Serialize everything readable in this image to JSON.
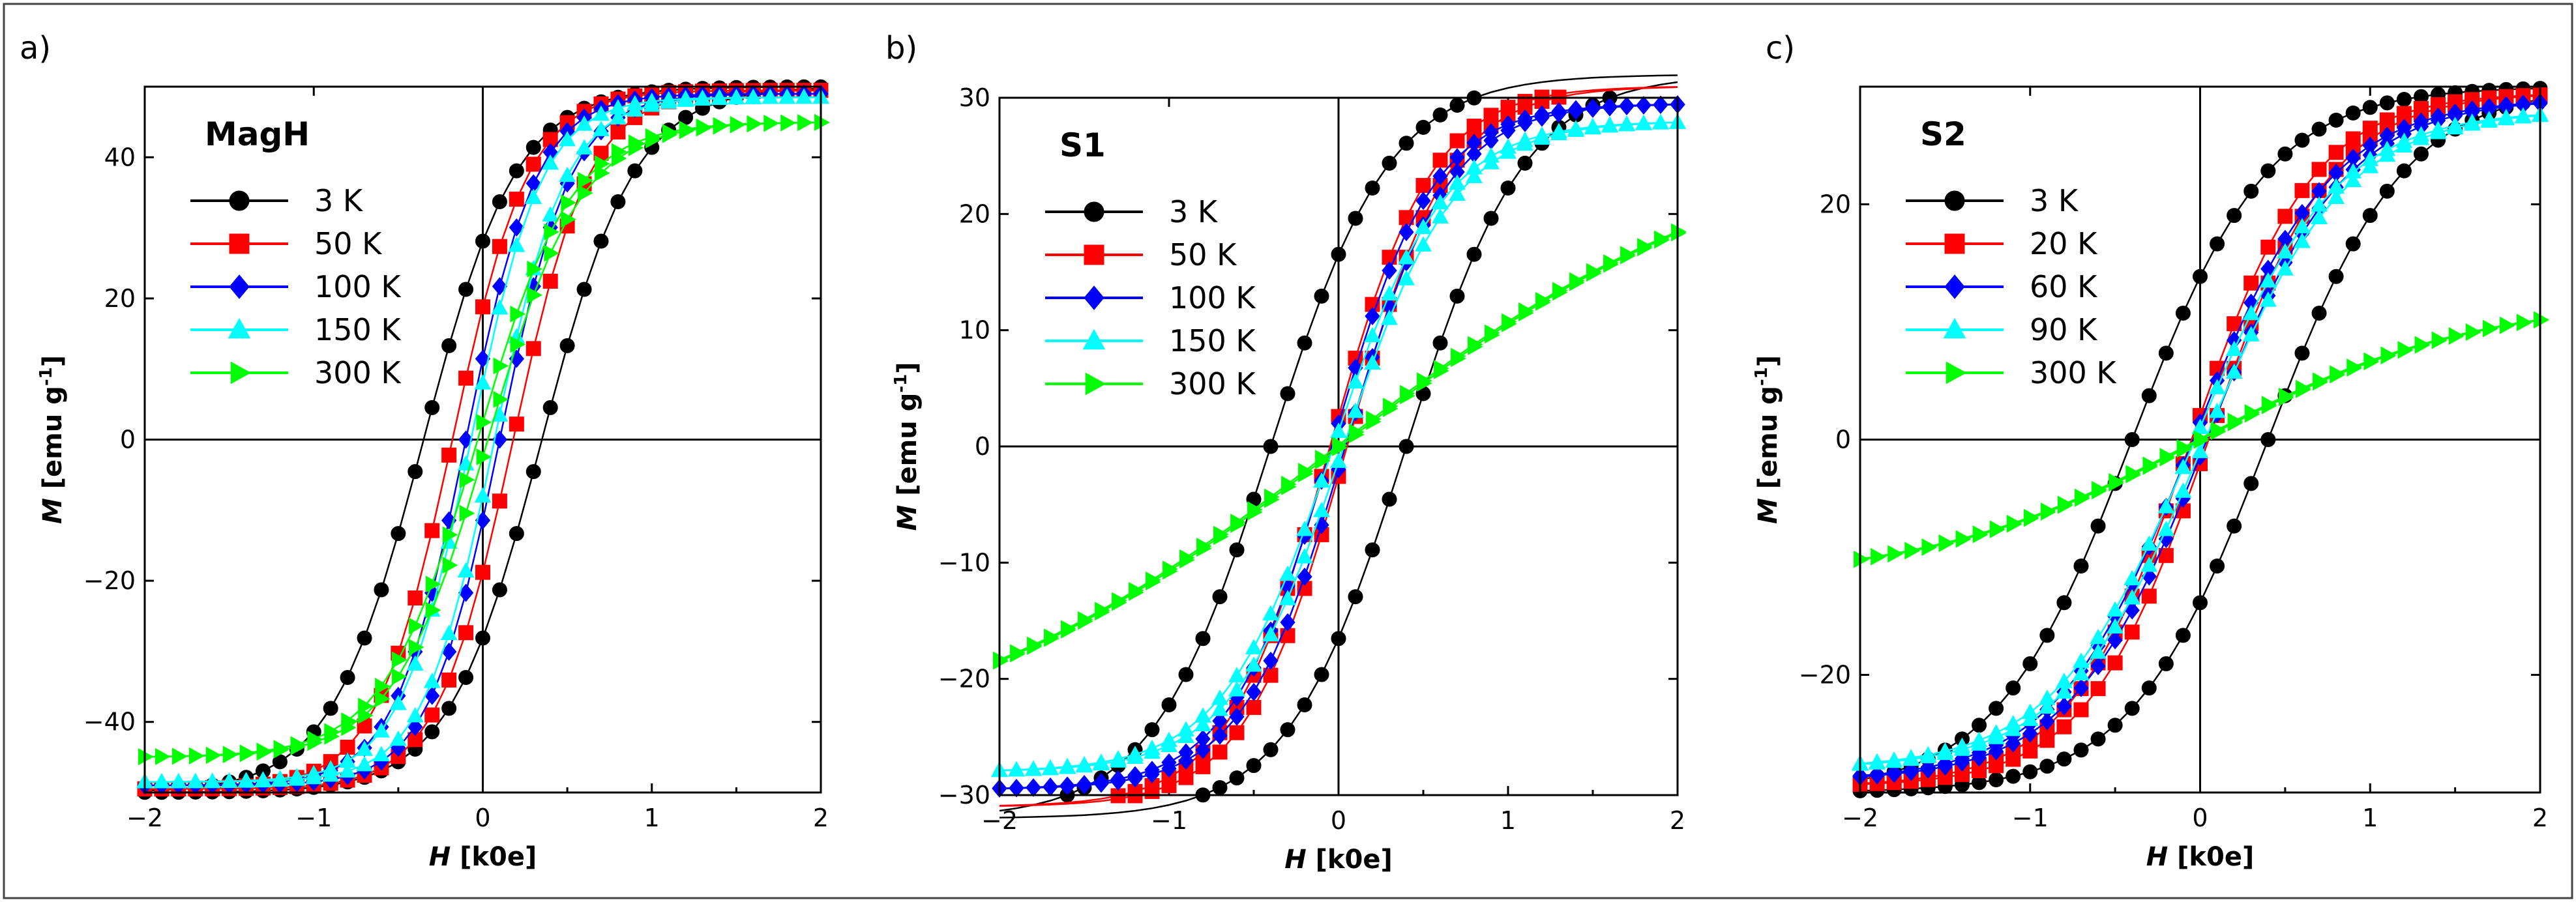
{
  "figure": {
    "description_labels": [
      "a)",
      "b)",
      "c)"
    ]
  },
  "chart_data": [
    {
      "type": "scatter",
      "panel_label": "a)",
      "title": "MagH",
      "xlabel_symbol": "H",
      "xlabel_unit": "[k0e]",
      "ylabel_symbol": "M",
      "ylabel_unit": "[emu g",
      "ylabel_sup": "-1",
      "ylabel_close": "]",
      "xlim": [
        -2,
        2
      ],
      "ylim": [
        -50,
        50
      ],
      "xticks": [
        -2,
        -1,
        0,
        1,
        2
      ],
      "yticks": [
        -40,
        -20,
        0,
        20,
        40
      ],
      "series": [
        {
          "name": "3 K",
          "color": "#000000",
          "marker": "circle",
          "Ms": 50.0,
          "Hc": 0.35,
          "w": 0.55,
          "n": 40
        },
        {
          "name": "50 K",
          "color": "#ff0000",
          "marker": "square",
          "Ms": 49.5,
          "Hc": 0.18,
          "w": 0.45,
          "n": 40
        },
        {
          "name": "100 K",
          "color": "#0000ff",
          "marker": "diamond",
          "Ms": 49.0,
          "Hc": 0.1,
          "w": 0.42,
          "n": 40
        },
        {
          "name": "150 K",
          "color": "#00ffff",
          "marker": "triangle-up",
          "Ms": 48.5,
          "Hc": 0.07,
          "w": 0.42,
          "n": 40
        },
        {
          "name": "300 K",
          "color": "#00ff00",
          "marker": "triangle-right",
          "Ms": 45.0,
          "Hc": 0.03,
          "w": 0.55,
          "n": 40
        }
      ]
    },
    {
      "type": "scatter",
      "panel_label": "b)",
      "title": "S1",
      "xlabel_symbol": "H",
      "xlabel_unit": "[k0e]",
      "ylabel_symbol": "M",
      "ylabel_unit": "[emu g",
      "ylabel_sup": "-1",
      "ylabel_close": "]",
      "xlim": [
        -2,
        2
      ],
      "ylim": [
        -30,
        30
      ],
      "xticks": [
        -2,
        -1,
        0,
        1,
        2
      ],
      "yticks": [
        -30,
        -20,
        -10,
        0,
        10,
        20,
        30
      ],
      "series": [
        {
          "name": "3 K",
          "color": "#000000",
          "marker": "circle",
          "Ms": 32.0,
          "Hc": 0.4,
          "w": 0.7,
          "n": 40
        },
        {
          "name": "50 K",
          "color": "#ff0000",
          "marker": "square",
          "Ms": 31.0,
          "Hc": 0.05,
          "w": 0.6,
          "n": 40
        },
        {
          "name": "100 K",
          "color": "#0000ff",
          "marker": "diamond",
          "Ms": 29.5,
          "Hc": 0.04,
          "w": 0.6,
          "n": 40
        },
        {
          "name": "150 K",
          "color": "#00ffff",
          "marker": "triangle-up",
          "Ms": 28.0,
          "Hc": 0.03,
          "w": 0.65,
          "n": 40
        },
        {
          "name": "300 K",
          "color": "#00ff00",
          "marker": "triangle-right",
          "Ms": 27.0,
          "Hc": 0.01,
          "w": 2.4,
          "n": 40
        }
      ]
    },
    {
      "type": "scatter",
      "panel_label": "c)",
      "title": "S2",
      "xlabel_symbol": "H",
      "xlabel_unit": "[k0e]",
      "ylabel_symbol": "M",
      "ylabel_unit": "[emu g",
      "ylabel_sup": "-1",
      "ylabel_close": "]",
      "xlim": [
        -2,
        2
      ],
      "ylim": [
        -30,
        30
      ],
      "xticks": [
        -2,
        -1,
        0,
        1,
        2
      ],
      "yticks": [
        -20,
        0,
        20
      ],
      "series": [
        {
          "name": "3 K",
          "color": "#000000",
          "marker": "circle",
          "Ms": 30.0,
          "Hc": 0.4,
          "w": 0.8,
          "n": 40
        },
        {
          "name": "20 K",
          "color": "#ff0000",
          "marker": "square",
          "Ms": 29.5,
          "Hc": 0.05,
          "w": 0.72,
          "n": 40
        },
        {
          "name": "60 K",
          "color": "#0000ff",
          "marker": "diamond",
          "Ms": 29.0,
          "Hc": 0.04,
          "w": 0.8,
          "n": 40
        },
        {
          "name": "90 K",
          "color": "#00ffff",
          "marker": "triangle-up",
          "Ms": 28.0,
          "Hc": 0.03,
          "w": 0.82,
          "n": 40
        },
        {
          "name": "300 K",
          "color": "#00ff00",
          "marker": "triangle-right",
          "Ms": 12.0,
          "Hc": 0.01,
          "w": 1.6,
          "n": 40
        }
      ]
    }
  ]
}
